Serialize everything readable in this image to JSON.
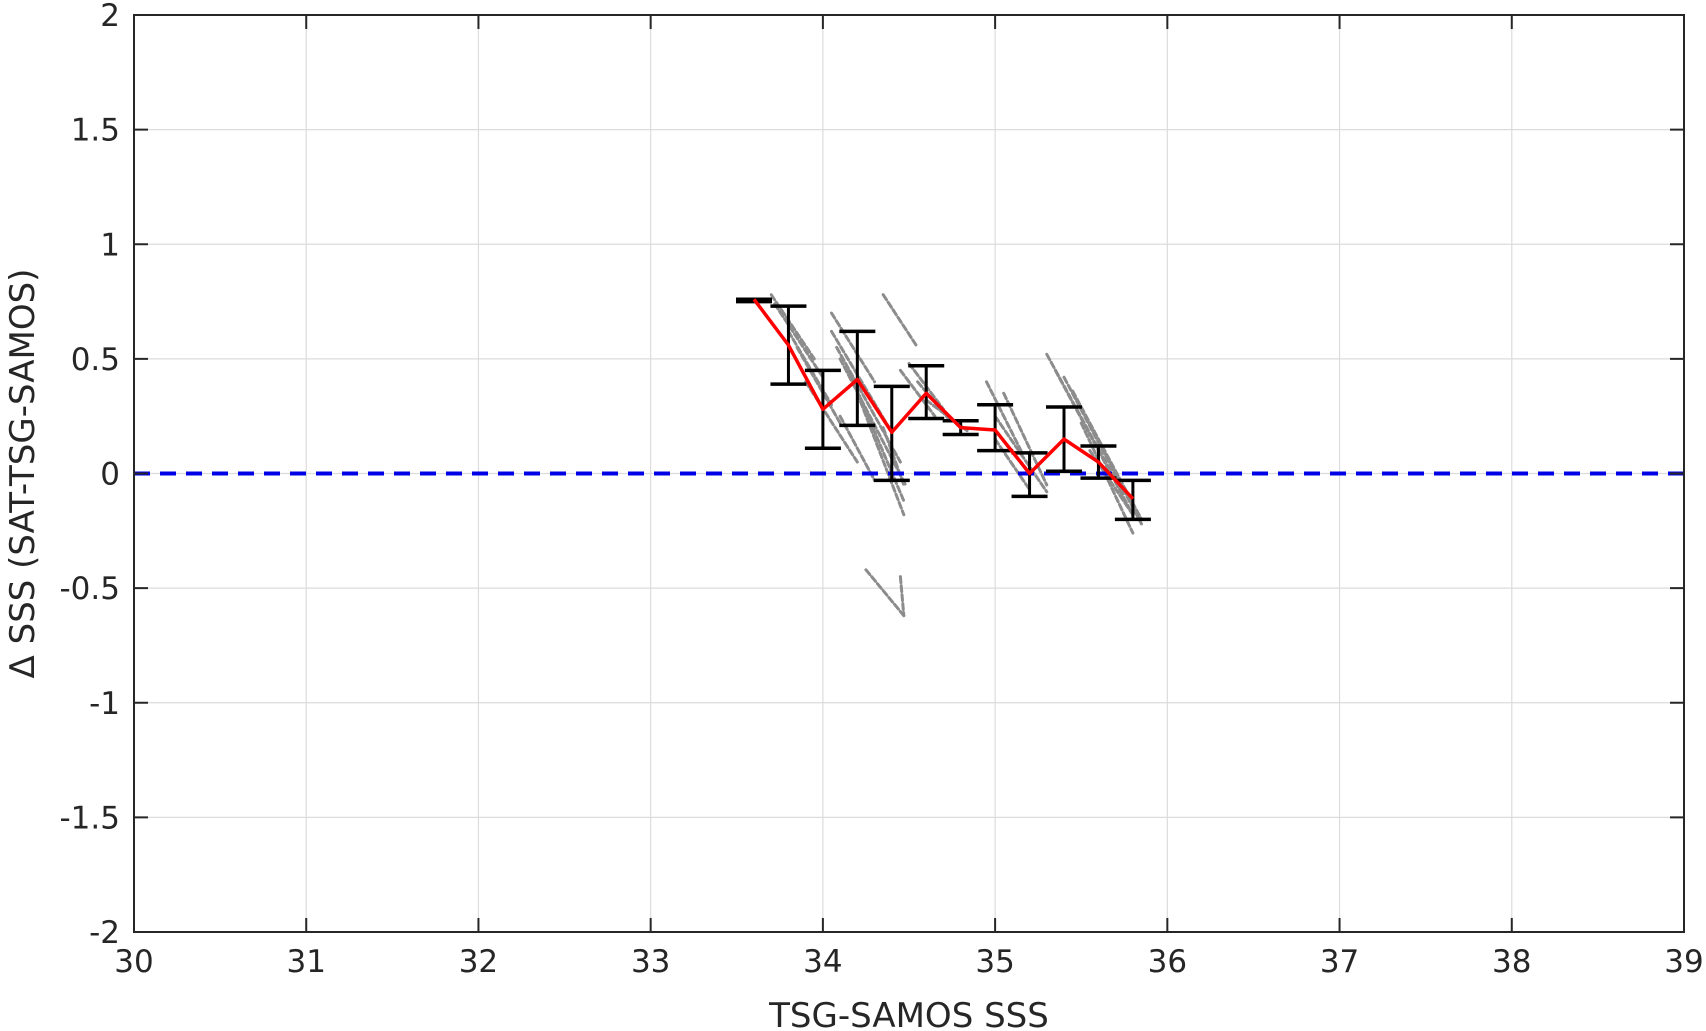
{
  "chart_data": {
    "type": "scatter",
    "title": "",
    "xlabel": "TSG-SAMOS SSS",
    "ylabel": "Δ SSS (SAT-TSG-SAMOS)",
    "xlim": [
      30,
      39
    ],
    "ylim": [
      -2,
      2
    ],
    "xticks": [
      30,
      31,
      32,
      33,
      34,
      35,
      36,
      37,
      38,
      39
    ],
    "yticks": [
      -2,
      -1.5,
      -1,
      -0.5,
      0,
      0.5,
      1,
      1.5,
      2
    ],
    "xtick_labels": [
      "30",
      "31",
      "32",
      "33",
      "34",
      "35",
      "36",
      "37",
      "38",
      "39"
    ],
    "ytick_labels": [
      "-2",
      "-1.5",
      "-1",
      "-0.5",
      "0",
      "0.5",
      "1",
      "1.5",
      "2"
    ],
    "grid": true,
    "colors": {
      "scatter": "#8c8c8c",
      "mean_line": "#ff0000",
      "error_bars": "#000000",
      "zero_line": "#0000e6",
      "grid": "#dcdcdc",
      "axes": "#262626"
    },
    "zero_line": {
      "y": 0,
      "style": "dashed"
    },
    "binned_mean": {
      "x": [
        33.6,
        33.8,
        34.0,
        34.2,
        34.4,
        34.6,
        34.8,
        35.0,
        35.2,
        35.4,
        35.6,
        35.8
      ],
      "y": [
        0.76,
        0.56,
        0.28,
        0.41,
        0.18,
        0.35,
        0.2,
        0.19,
        0.0,
        0.15,
        0.05,
        -0.11
      ]
    },
    "error_bars": [
      {
        "x": 33.6,
        "low": 0.75,
        "high": 0.76
      },
      {
        "x": 33.8,
        "low": 0.39,
        "high": 0.73
      },
      {
        "x": 34.0,
        "low": 0.11,
        "high": 0.45
      },
      {
        "x": 34.2,
        "low": 0.21,
        "high": 0.62
      },
      {
        "x": 34.4,
        "low": -0.03,
        "high": 0.38
      },
      {
        "x": 34.6,
        "low": 0.24,
        "high": 0.47
      },
      {
        "x": 34.8,
        "low": 0.17,
        "high": 0.23
      },
      {
        "x": 35.0,
        "low": 0.1,
        "high": 0.3
      },
      {
        "x": 35.2,
        "low": -0.1,
        "high": 0.09
      },
      {
        "x": 35.4,
        "low": 0.01,
        "high": 0.29
      },
      {
        "x": 35.6,
        "low": -0.02,
        "high": 0.12
      },
      {
        "x": 35.8,
        "low": -0.2,
        "high": -0.03
      }
    ],
    "scatter_tracks": [
      {
        "x": [
          33.7,
          33.95
        ],
        "y": [
          0.78,
          0.5
        ]
      },
      {
        "x": [
          33.72,
          34.0
        ],
        "y": [
          0.74,
          0.42
        ]
      },
      {
        "x": [
          33.8,
          34.05
        ],
        "y": [
          0.62,
          0.3
        ]
      },
      {
        "x": [
          33.85,
          34.1
        ],
        "y": [
          0.55,
          0.22
        ]
      },
      {
        "x": [
          33.9,
          34.2
        ],
        "y": [
          0.4,
          0.05
        ]
      },
      {
        "x": [
          34.05,
          34.3
        ],
        "y": [
          0.7,
          0.4
        ]
      },
      {
        "x": [
          34.05,
          34.4
        ],
        "y": [
          0.62,
          0.18
        ]
      },
      {
        "x": [
          34.08,
          34.45
        ],
        "y": [
          0.55,
          0.05
        ]
      },
      {
        "x": [
          34.1,
          34.48
        ],
        "y": [
          0.5,
          -0.05
        ]
      },
      {
        "x": [
          34.15,
          34.47
        ],
        "y": [
          0.45,
          -0.12
        ]
      },
      {
        "x": [
          34.2,
          34.47
        ],
        "y": [
          0.35,
          -0.18
        ]
      },
      {
        "x": [
          34.1,
          34.3
        ],
        "y": [
          0.25,
          -0.03
        ]
      },
      {
        "x": [
          34.35,
          34.55
        ],
        "y": [
          0.78,
          0.55
        ]
      },
      {
        "x": [
          34.35,
          34.47
        ],
        "y": [
          0.2,
          -0.05
        ]
      },
      {
        "x": [
          34.45,
          34.65
        ],
        "y": [
          0.45,
          0.25
        ]
      },
      {
        "x": [
          34.5,
          34.7
        ],
        "y": [
          0.48,
          0.28
        ]
      },
      {
        "x": [
          34.55,
          34.75
        ],
        "y": [
          0.4,
          0.22
        ]
      },
      {
        "x": [
          34.6,
          34.85
        ],
        "y": [
          0.32,
          0.18
        ]
      },
      {
        "x": [
          34.45,
          34.47
        ],
        "y": [
          -0.45,
          -0.62
        ]
      },
      {
        "x": [
          34.25,
          34.47
        ],
        "y": [
          -0.42,
          -0.62
        ]
      },
      {
        "x": [
          34.95,
          35.15
        ],
        "y": [
          0.4,
          0.1
        ]
      },
      {
        "x": [
          35.05,
          35.3
        ],
        "y": [
          0.35,
          -0.05
        ]
      },
      {
        "x": [
          35.0,
          35.3
        ],
        "y": [
          0.25,
          -0.08
        ]
      },
      {
        "x": [
          35.0,
          35.2
        ],
        "y": [
          0.15,
          -0.07
        ]
      },
      {
        "x": [
          35.3,
          35.75
        ],
        "y": [
          0.52,
          -0.1
        ]
      },
      {
        "x": [
          35.35,
          35.8
        ],
        "y": [
          0.45,
          -0.18
        ]
      },
      {
        "x": [
          35.4,
          35.85
        ],
        "y": [
          0.42,
          -0.22
        ]
      },
      {
        "x": [
          35.45,
          35.85
        ],
        "y": [
          0.36,
          -0.2
        ]
      },
      {
        "x": [
          35.5,
          35.8
        ],
        "y": [
          0.22,
          -0.26
        ]
      },
      {
        "x": [
          35.55,
          35.8
        ],
        "y": [
          0.1,
          -0.18
        ]
      }
    ]
  }
}
